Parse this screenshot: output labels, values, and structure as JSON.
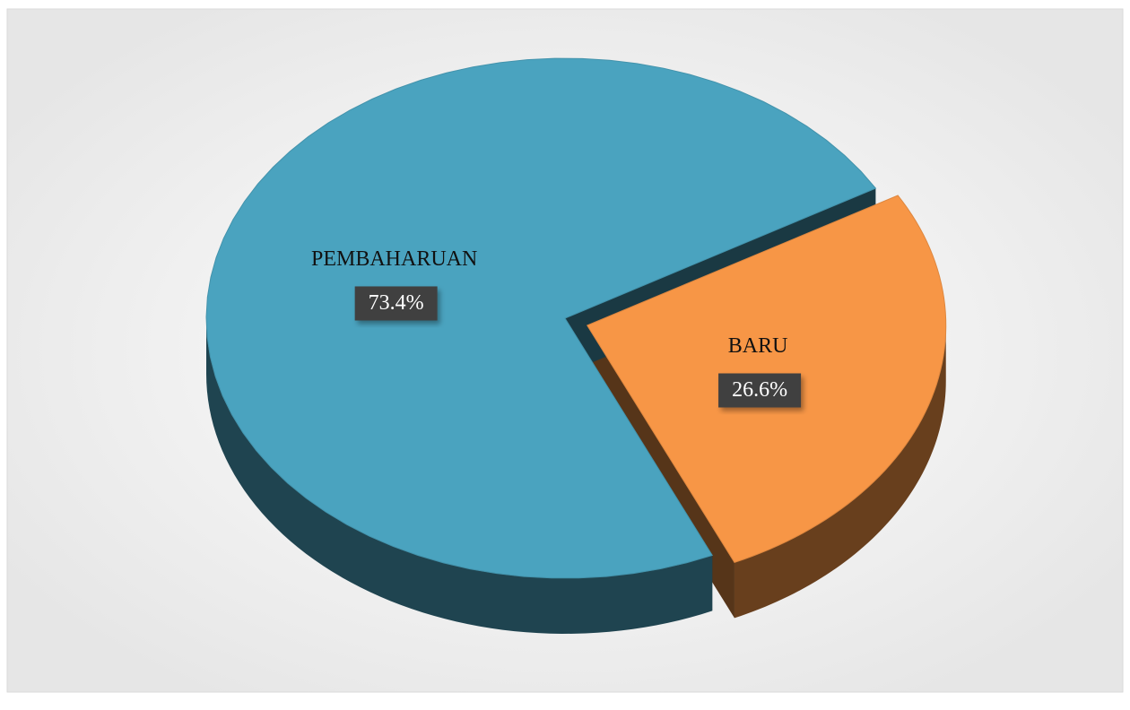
{
  "chart_data": {
    "type": "pie",
    "categories": [
      "PEMBAHARUAN",
      "BARU"
    ],
    "values": [
      73.4,
      26.6
    ],
    "value_labels": [
      "73.4%",
      "26.6%"
    ],
    "colors": [
      "#4aa3bf",
      "#f79646"
    ],
    "exploded": [
      false,
      true
    ]
  }
}
